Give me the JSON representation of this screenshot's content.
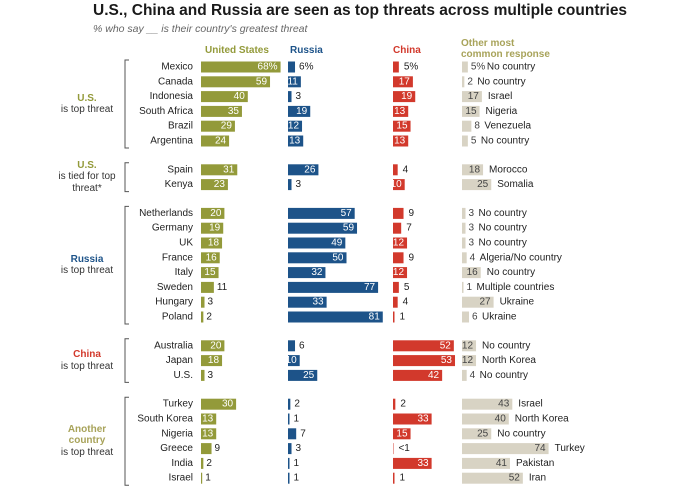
{
  "title": "U.S., China and Russia are seen as top threats across multiple countries",
  "subtitle": "% who say __ is their country's greatest threat",
  "columns": {
    "us": "United States",
    "russia": "Russia",
    "china": "China",
    "other": "Other most common response"
  },
  "colors": {
    "us": "#939a3a",
    "russia": "#1d5389",
    "china": "#d2392c",
    "other": "#d8d3c4",
    "other_text": "#444444",
    "us_label_text": "#939a3a",
    "russia_label_text": "#1d5389",
    "china_label_text": "#d2392c",
    "another_label_text": "#a8a35a"
  },
  "groups": [
    {
      "label_bold": "U.S.",
      "label_rest": "is top threat",
      "color_key": "us_label_text"
    },
    {
      "label_bold": "U.S.",
      "label_rest": "is tied for top threat*",
      "color_key": "us_label_text"
    },
    {
      "label_bold": "Russia",
      "label_rest": "is top threat",
      "color_key": "russia_label_text"
    },
    {
      "label_bold": "China",
      "label_rest": "is top threat",
      "color_key": "china_label_text"
    },
    {
      "label_bold": "Another country",
      "label_rest": "is top threat",
      "color_key": "another_label_text"
    }
  ],
  "chart_data": {
    "type": "bar",
    "series": [
      "United States",
      "Russia",
      "China",
      "Other most common response"
    ],
    "rows": [
      {
        "group": 0,
        "country": "Mexico",
        "us": 68,
        "us_label": "68%",
        "russia": 6,
        "russia_label": "6%",
        "china": 5,
        "china_label": "5%",
        "other": 5,
        "other_label": "5%",
        "other_country": "No country"
      },
      {
        "group": 0,
        "country": "Canada",
        "us": 59,
        "us_label": "59",
        "russia": 11,
        "russia_label": "11",
        "china": 17,
        "china_label": "17",
        "other": 2,
        "other_label": "2",
        "other_country": "No country"
      },
      {
        "group": 0,
        "country": "Indonesia",
        "us": 40,
        "us_label": "40",
        "russia": 3,
        "russia_label": "3",
        "china": 19,
        "china_label": "19",
        "other": 17,
        "other_label": "17",
        "other_country": "Israel"
      },
      {
        "group": 0,
        "country": "South Africa",
        "us": 35,
        "us_label": "35",
        "russia": 19,
        "russia_label": "19",
        "china": 13,
        "china_label": "13",
        "other": 15,
        "other_label": "15",
        "other_country": "Nigeria"
      },
      {
        "group": 0,
        "country": "Brazil",
        "us": 29,
        "us_label": "29",
        "russia": 12,
        "russia_label": "12",
        "china": 15,
        "china_label": "15",
        "other": 8,
        "other_label": "8",
        "other_country": "Venezuela"
      },
      {
        "group": 0,
        "country": "Argentina",
        "us": 24,
        "us_label": "24",
        "russia": 13,
        "russia_label": "13",
        "china": 13,
        "china_label": "13",
        "other": 5,
        "other_label": "5",
        "other_country": "No country"
      },
      {
        "group": 1,
        "country": "Spain",
        "us": 31,
        "us_label": "31",
        "russia": 26,
        "russia_label": "26",
        "china": 4,
        "china_label": "4",
        "other": 18,
        "other_label": "18",
        "other_country": "Morocco"
      },
      {
        "group": 1,
        "country": "Kenya",
        "us": 23,
        "us_label": "23",
        "russia": 3,
        "russia_label": "3",
        "china": 10,
        "china_label": "10",
        "other": 25,
        "other_label": "25",
        "other_country": "Somalia"
      },
      {
        "group": 2,
        "country": "Netherlands",
        "us": 20,
        "us_label": "20",
        "russia": 57,
        "russia_label": "57",
        "china": 9,
        "china_label": "9",
        "other": 3,
        "other_label": "3",
        "other_country": "No country"
      },
      {
        "group": 2,
        "country": "Germany",
        "us": 19,
        "us_label": "19",
        "russia": 59,
        "russia_label": "59",
        "china": 7,
        "china_label": "7",
        "other": 3,
        "other_label": "3",
        "other_country": "No country"
      },
      {
        "group": 2,
        "country": "UK",
        "us": 18,
        "us_label": "18",
        "russia": 49,
        "russia_label": "49",
        "china": 12,
        "china_label": "12",
        "other": 3,
        "other_label": "3",
        "other_country": "No country"
      },
      {
        "group": 2,
        "country": "France",
        "us": 16,
        "us_label": "16",
        "russia": 50,
        "russia_label": "50",
        "china": 9,
        "china_label": "9",
        "other": 4,
        "other_label": "4",
        "other_country": "Algeria/No country"
      },
      {
        "group": 2,
        "country": "Italy",
        "us": 15,
        "us_label": "15",
        "russia": 32,
        "russia_label": "32",
        "china": 12,
        "china_label": "12",
        "other": 16,
        "other_label": "16",
        "other_country": "No country"
      },
      {
        "group": 2,
        "country": "Sweden",
        "us": 11,
        "us_label": "11",
        "russia": 77,
        "russia_label": "77",
        "china": 5,
        "china_label": "5",
        "other": 1,
        "other_label": "1",
        "other_country": "Multiple countries"
      },
      {
        "group": 2,
        "country": "Hungary",
        "us": 3,
        "us_label": "3",
        "russia": 33,
        "russia_label": "33",
        "china": 4,
        "china_label": "4",
        "other": 27,
        "other_label": "27",
        "other_country": "Ukraine"
      },
      {
        "group": 2,
        "country": "Poland",
        "us": 2,
        "us_label": "2",
        "russia": 81,
        "russia_label": "81",
        "china": 1,
        "china_label": "1",
        "other": 6,
        "other_label": "6",
        "other_country": "Ukraine"
      },
      {
        "group": 3,
        "country": "Australia",
        "us": 20,
        "us_label": "20",
        "russia": 6,
        "russia_label": "6",
        "china": 52,
        "china_label": "52",
        "other": 12,
        "other_label": "12",
        "other_country": "No country"
      },
      {
        "group": 3,
        "country": "Japan",
        "us": 18,
        "us_label": "18",
        "russia": 10,
        "russia_label": "10",
        "china": 53,
        "china_label": "53",
        "other": 12,
        "other_label": "12",
        "other_country": "North Korea"
      },
      {
        "group": 3,
        "country": "U.S.",
        "us": 3,
        "us_label": "3",
        "russia": 25,
        "russia_label": "25",
        "china": 42,
        "china_label": "42",
        "other": 4,
        "other_label": "4",
        "other_country": "No country"
      },
      {
        "group": 4,
        "country": "Turkey",
        "us": 30,
        "us_label": "30",
        "russia": 2,
        "russia_label": "2",
        "china": 2,
        "china_label": "2",
        "other": 43,
        "other_label": "43",
        "other_country": "Israel"
      },
      {
        "group": 4,
        "country": "South Korea",
        "us": 13,
        "us_label": "13",
        "russia": 1,
        "russia_label": "1",
        "china": 33,
        "china_label": "33",
        "other": 40,
        "other_label": "40",
        "other_country": "North Korea"
      },
      {
        "group": 4,
        "country": "Nigeria",
        "us": 13,
        "us_label": "13",
        "russia": 7,
        "russia_label": "7",
        "china": 15,
        "china_label": "15",
        "other": 25,
        "other_label": "25",
        "other_country": "No country"
      },
      {
        "group": 4,
        "country": "Greece",
        "us": 9,
        "us_label": "9",
        "russia": 3,
        "russia_label": "3",
        "china": 0.4,
        "china_label": "<1",
        "other": 74,
        "other_label": "74",
        "other_country": "Turkey"
      },
      {
        "group": 4,
        "country": "India",
        "us": 2,
        "us_label": "2",
        "russia": 1,
        "russia_label": "1",
        "china": 33,
        "china_label": "33",
        "other": 41,
        "other_label": "41",
        "other_country": "Pakistan"
      },
      {
        "group": 4,
        "country": "Israel",
        "us": 1,
        "us_label": "1",
        "russia": 1,
        "russia_label": "1",
        "china": 1,
        "china_label": "1",
        "other": 52,
        "other_label": "52",
        "other_country": "Iran"
      }
    ]
  }
}
